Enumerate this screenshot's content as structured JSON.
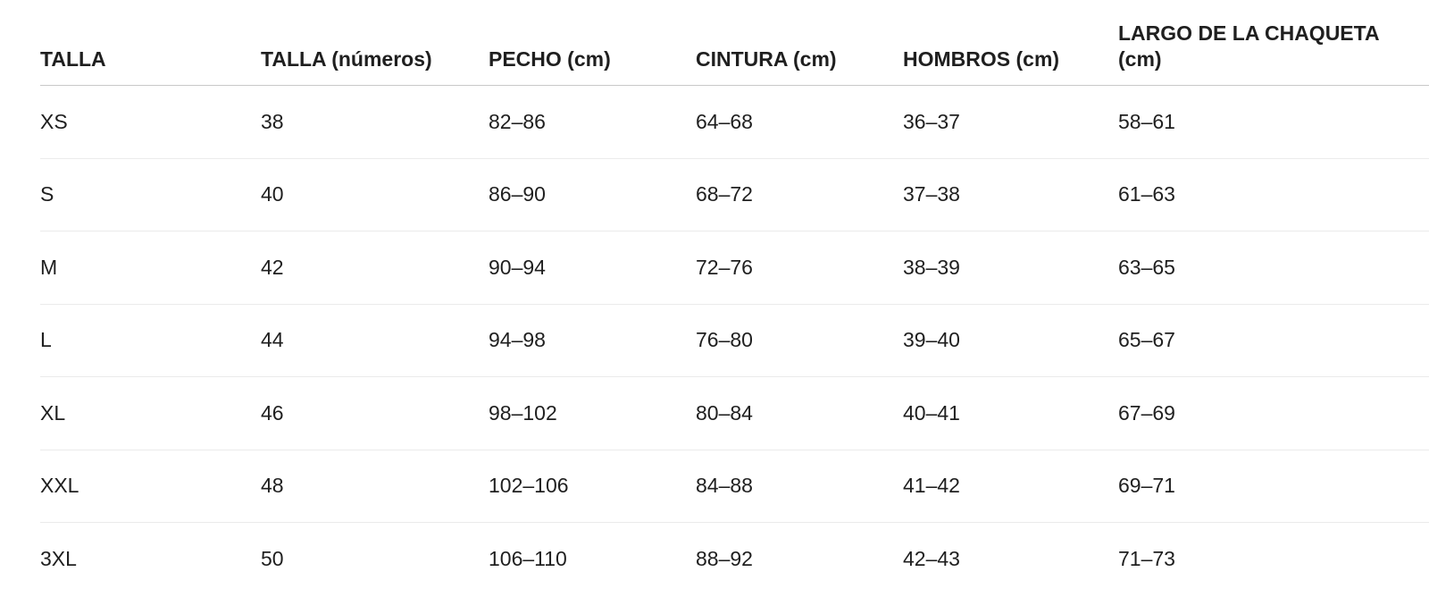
{
  "table": {
    "header": [
      "TALLA",
      "TALLA (números)",
      "PECHO (cm)",
      "CINTURA (cm)",
      "HOMBROS (cm)",
      "LARGO DE LA CHAQUETA (cm)"
    ],
    "rows": [
      [
        "XS",
        "38",
        "82–86",
        "64–68",
        "36–37",
        "58–61"
      ],
      [
        "S",
        "40",
        "86–90",
        "68–72",
        "37–38",
        "61–63"
      ],
      [
        "M",
        "42",
        "90–94",
        "72–76",
        "38–39",
        "63–65"
      ],
      [
        "L",
        "44",
        "94–98",
        "76–80",
        "39–40",
        "65–67"
      ],
      [
        "XL",
        "46",
        "98–102",
        "80–84",
        "40–41",
        "67–69"
      ],
      [
        "XXL",
        "48",
        "102–106",
        "84–88",
        "41–42",
        "69–71"
      ],
      [
        "3XL",
        "50",
        "106–110",
        "88–92",
        "42–43",
        "71–73"
      ]
    ]
  }
}
